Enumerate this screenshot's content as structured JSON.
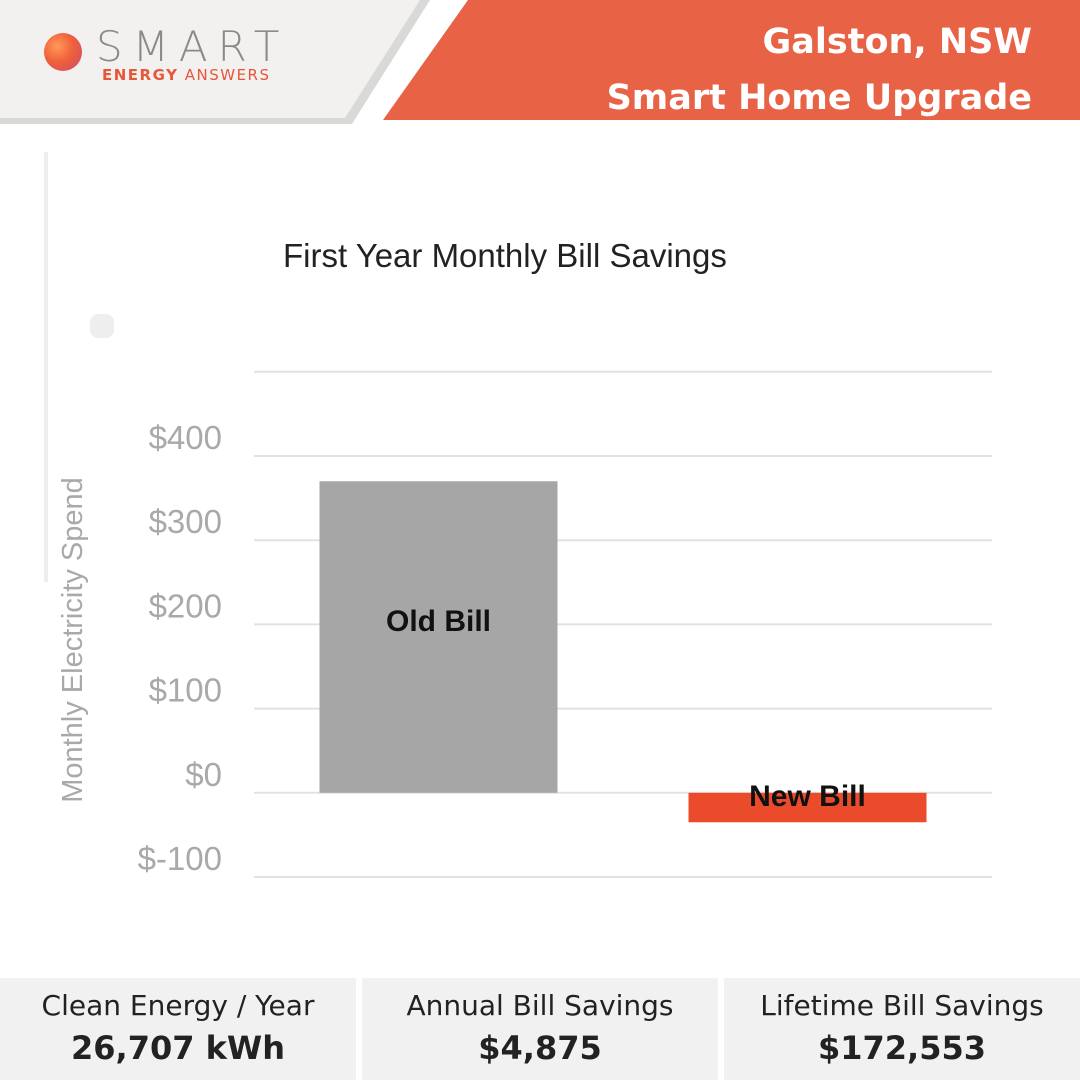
{
  "header": {
    "brand_name": "SMART",
    "brand_tagline_bold": "ENERGY",
    "brand_tagline_rest": "ANSWERS",
    "location": "Galston, NSW",
    "project": "Smart Home Upgrade",
    "colors": {
      "accent": "#e86246",
      "panel": "#f2f1ef"
    }
  },
  "chart_data": {
    "type": "bar",
    "title": "First Year Monthly Bill Savings",
    "ylabel": "Monthly Electricity Spend",
    "xlabel": "",
    "ylim": [
      -100,
      400
    ],
    "yticks": [
      400,
      300,
      200,
      100,
      0,
      -100
    ],
    "ytick_labels": [
      "$400",
      "$300",
      "$200",
      "$100",
      "$0",
      "$-100"
    ],
    "grid": true,
    "categories": [
      "Old Bill",
      "New Bill"
    ],
    "values": [
      370,
      -35
    ],
    "colors": [
      "#a6a6a6",
      "#ea4b2a"
    ]
  },
  "stats": [
    {
      "label": "Clean Energy / Year",
      "value": "26,707 kWh"
    },
    {
      "label": "Annual Bill Savings",
      "value": "$4,875"
    },
    {
      "label": "Lifetime Bill Savings",
      "value": "$172,553"
    }
  ]
}
